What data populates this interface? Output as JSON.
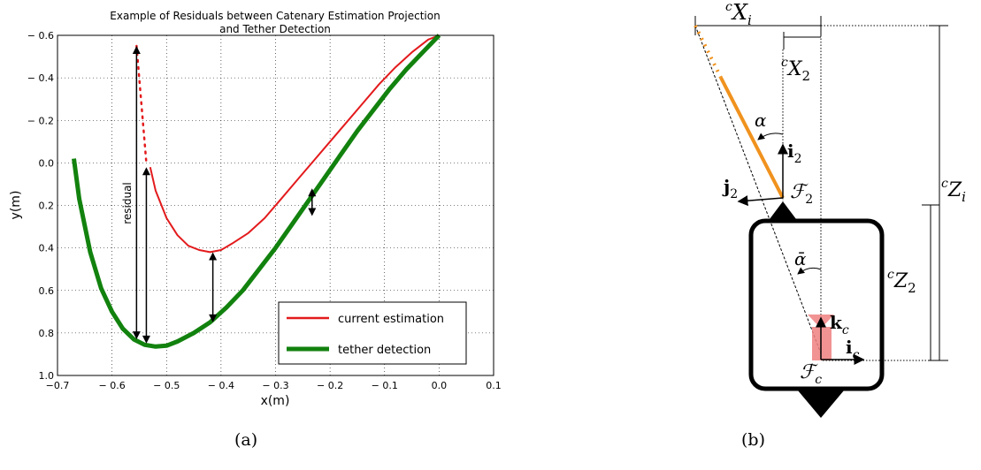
{
  "chart_data": {
    "type": "line",
    "title": "Example of Residuals between Catenary Estimation Projection and Tether Detection",
    "title_lines": [
      "Example of Residuals between Catenary Estimation Projection",
      "and Tether Detection"
    ],
    "xlabel": "x(m)",
    "ylabel": "y(m)",
    "xlim": [
      -0.7,
      0.1
    ],
    "ylim": [
      -0.6,
      1.0
    ],
    "y_inverted": true,
    "grid": true,
    "legend": "bottom-right",
    "x_ticks": [
      -0.7,
      -0.6,
      -0.5,
      -0.4,
      -0.3,
      -0.2,
      -0.1,
      0.0,
      0.1
    ],
    "x_tick_labels": [
      "−0.7",
      "− 0.6",
      "− 0.5",
      "− 0.4",
      "− 0.3",
      "− 0.2",
      "− 0.1",
      "0.0",
      "0.1"
    ],
    "y_ticks": [
      -0.6,
      -0.4,
      -0.2,
      0.0,
      0.2,
      0.4,
      0.6,
      0.8,
      1.0
    ],
    "y_tick_labels": [
      "− 0.6",
      "− 0.4",
      "− 0.2",
      "0.0",
      "0.2",
      "0.4",
      "0.6",
      "0.8",
      "1.0"
    ],
    "series": [
      {
        "name": "current estimation",
        "color": "#e31a1c",
        "x": [
          -0.53,
          -0.52,
          -0.5,
          -0.48,
          -0.46,
          -0.44,
          -0.42,
          -0.4,
          -0.38,
          -0.35,
          -0.32,
          -0.29,
          -0.26,
          -0.23,
          -0.2,
          -0.17,
          -0.14,
          -0.11,
          -0.08,
          -0.05,
          -0.02,
          0.0
        ],
        "y": [
          0.02,
          0.13,
          0.26,
          0.34,
          0.39,
          0.41,
          0.42,
          0.41,
          0.38,
          0.33,
          0.26,
          0.17,
          0.08,
          -0.01,
          -0.1,
          -0.19,
          -0.28,
          -0.37,
          -0.45,
          -0.52,
          -0.58,
          -0.6
        ]
      },
      {
        "name": "tether detection",
        "color": "#12820e",
        "x": [
          -0.67,
          -0.66,
          -0.64,
          -0.62,
          -0.6,
          -0.58,
          -0.56,
          -0.54,
          -0.52,
          -0.5,
          -0.48,
          -0.45,
          -0.42,
          -0.39,
          -0.36,
          -0.33,
          -0.3,
          -0.27,
          -0.24,
          -0.21,
          -0.18,
          -0.15,
          -0.12,
          -0.09,
          -0.06,
          -0.03,
          0.0
        ],
        "y": [
          -0.02,
          0.17,
          0.42,
          0.59,
          0.7,
          0.78,
          0.83,
          0.856,
          0.864,
          0.86,
          0.84,
          0.8,
          0.75,
          0.68,
          0.6,
          0.5,
          0.4,
          0.29,
          0.18,
          0.07,
          -0.04,
          -0.15,
          -0.25,
          -0.35,
          -0.44,
          -0.52,
          -0.6
        ]
      }
    ],
    "dotted_extension": {
      "x": [
        -0.555,
        -0.537
      ],
      "y": [
        -0.55,
        0.0
      ]
    },
    "residual_arrows": [
      {
        "x": -0.555,
        "y1": -0.55,
        "y2": 0.83
      },
      {
        "x": -0.537,
        "y1": 0.02,
        "y2": 0.85
      },
      {
        "x": -0.415,
        "y1": 0.42,
        "y2": 0.75
      },
      {
        "x": -0.233,
        "y1": 0.12,
        "y2": 0.25
      }
    ],
    "annotations": [
      "residual"
    ]
  },
  "captions": {
    "a": "(a)",
    "b": "(b)"
  },
  "diagram": {
    "labels": {
      "Xi": "X",
      "Xi_sub": "i",
      "X2": "X",
      "X2_sub": "2",
      "Zi": "Z",
      "Zi_sub": "i",
      "Z2": "Z",
      "Z2_sub": "2",
      "pre_c": "c",
      "alpha": "α",
      "alpha_bar": "ᾱ",
      "i2": "i",
      "i2_sub": "2",
      "j2": "j",
      "j2_sub": "2",
      "F2": "ℱ",
      "F2_sub": "2",
      "kc": "k",
      "kc_sub": "c",
      "ic": "i",
      "ic_sub": "c",
      "Fc": "ℱ",
      "Fc_sub": "c"
    },
    "colors": {
      "tether": "#f0921e",
      "camera": "#f08080"
    }
  }
}
